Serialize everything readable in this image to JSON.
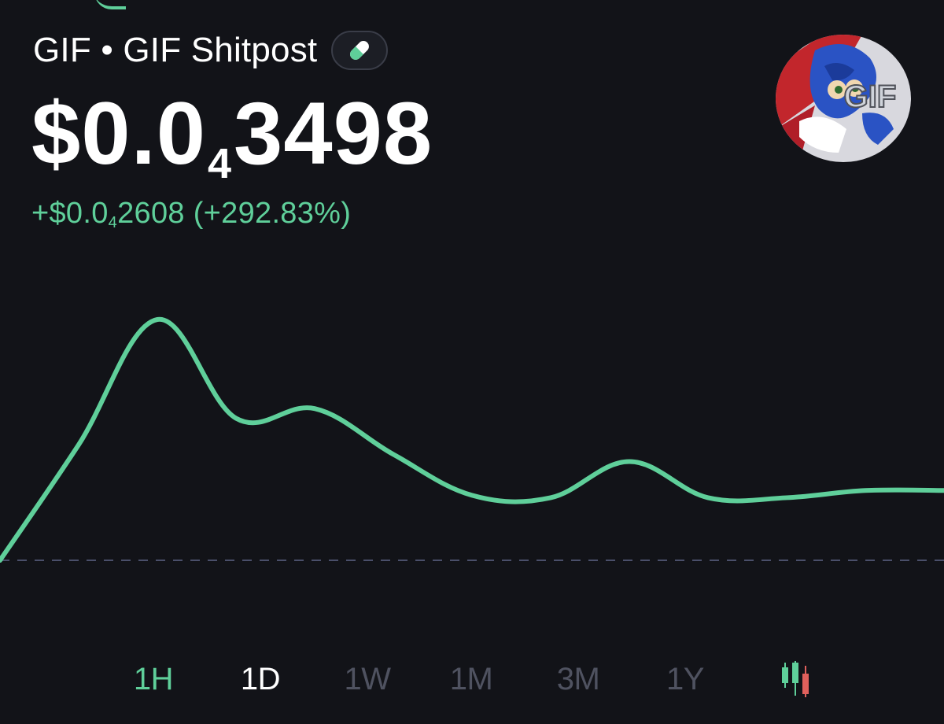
{
  "token": {
    "name": "GIF • GIF Shitpost",
    "badge_icon": "pill-icon"
  },
  "price": {
    "prefix": "$0.0",
    "zero_count": "4",
    "digits": "3498"
  },
  "change": {
    "prefix": "+$0.0",
    "zero_count": "4",
    "digits": "2608",
    "percent": " (+292.83%)"
  },
  "avatar": {
    "label": "GIF"
  },
  "timeframes": [
    {
      "label": "1H",
      "state": "active"
    },
    {
      "label": "1D",
      "state": "selected"
    },
    {
      "label": "1W",
      "state": "inactive"
    },
    {
      "label": "1M",
      "state": "inactive"
    },
    {
      "label": "3M",
      "state": "inactive"
    },
    {
      "label": "1Y",
      "state": "inactive"
    }
  ],
  "chart_toggle_icon": "candlestick-chart-icon",
  "colors": {
    "background": "#121318",
    "positive": "#5fcf9a",
    "negative": "#e0605c",
    "baseline": "#4a4f6a",
    "muted": "#4f5260"
  },
  "chart_data": {
    "type": "line",
    "x": [
      0,
      1,
      2,
      3,
      4,
      5,
      6,
      7,
      8,
      9,
      10,
      11,
      12
    ],
    "y": [
      0.0,
      0.48,
      1.0,
      0.59,
      0.63,
      0.44,
      0.27,
      0.26,
      0.41,
      0.26,
      0.26,
      0.29,
      0.29
    ],
    "baseline": 0.0,
    "ylim": [
      -0.3,
      1.0
    ],
    "grid": false
  }
}
